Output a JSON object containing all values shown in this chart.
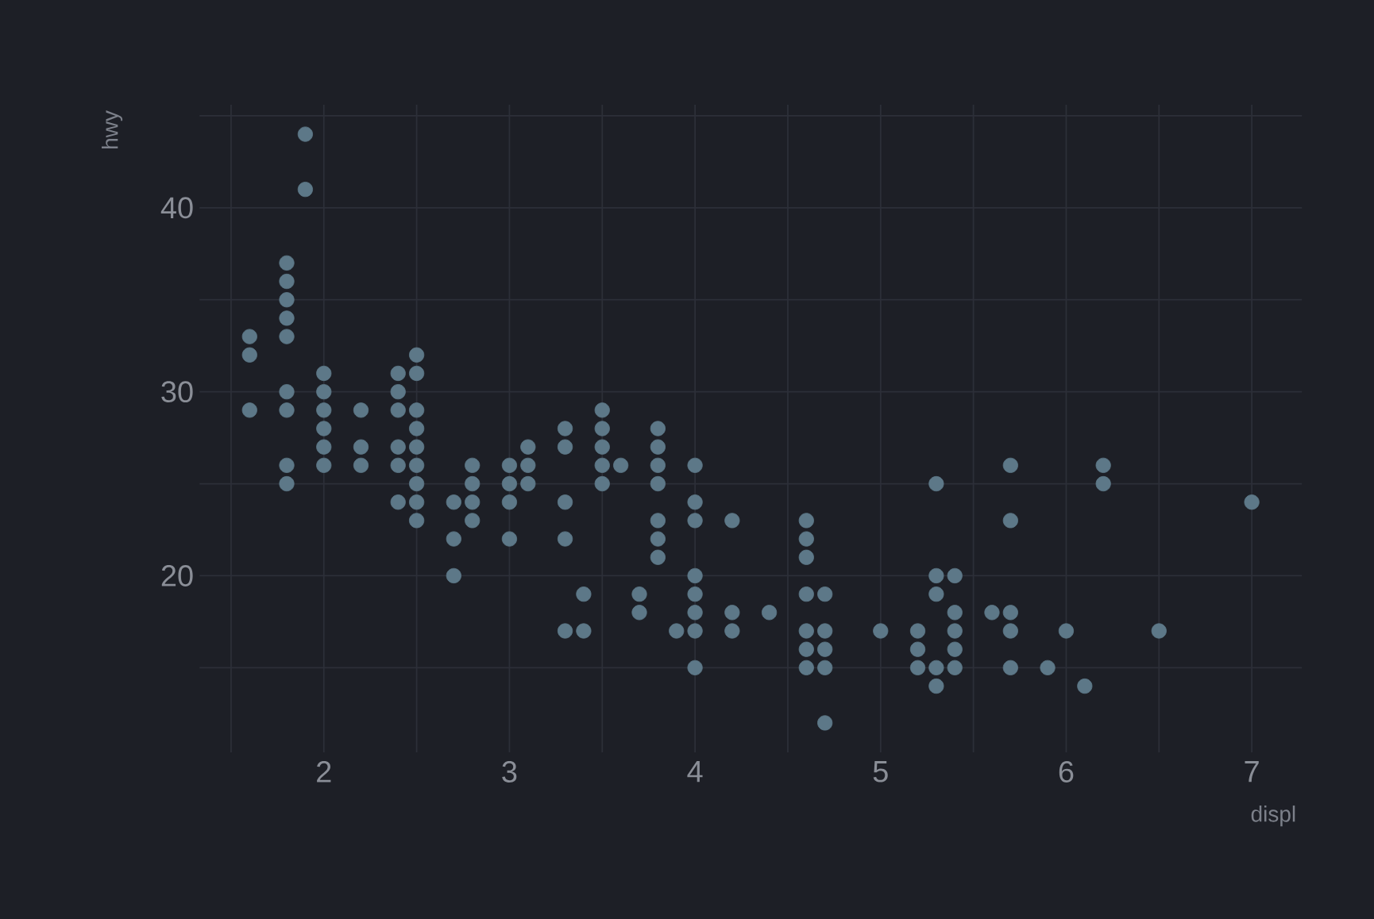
{
  "chart_data": {
    "type": "scatter",
    "xlabel": "displ",
    "ylabel": "hwy",
    "grid": true,
    "xlim": [
      1.33,
      7.27
    ],
    "ylim": [
      10.4,
      45.6
    ],
    "xticks": [
      {
        "value": 1.5,
        "label": null
      },
      2,
      {
        "value": 2.5,
        "label": null
      },
      3,
      {
        "value": 3.5,
        "label": null
      },
      4,
      {
        "value": 4.5,
        "label": null
      },
      5,
      {
        "value": 5.5,
        "label": null
      },
      6,
      {
        "value": 6.5,
        "label": null
      },
      7
    ],
    "yticks": [
      {
        "value": 15,
        "label": null
      },
      20,
      {
        "value": 25,
        "label": null
      },
      30,
      {
        "value": 35,
        "label": null
      },
      40,
      {
        "value": 45,
        "label": null
      }
    ],
    "series": [
      {
        "color": "#5d7888",
        "x": [
          1.6,
          1.6,
          1.6,
          1.8,
          1.8,
          1.8,
          1.8,
          1.8,
          1.8,
          1.8,
          1.8,
          1.8,
          1.9,
          1.9,
          2.0,
          2.0,
          2.0,
          2.0,
          2.0,
          2.0,
          2.2,
          2.2,
          2.2,
          2.4,
          2.4,
          2.4,
          2.4,
          2.4,
          2.4,
          2.5,
          2.5,
          2.5,
          2.5,
          2.5,
          2.5,
          2.5,
          2.5,
          2.5,
          2.7,
          2.7,
          2.7,
          2.8,
          2.8,
          2.8,
          2.8,
          3.0,
          3.0,
          3.0,
          3.0,
          3.1,
          3.1,
          3.1,
          3.3,
          3.3,
          3.3,
          3.3,
          3.3,
          3.4,
          3.4,
          3.5,
          3.5,
          3.5,
          3.5,
          3.5,
          3.6,
          3.7,
          3.7,
          3.8,
          3.8,
          3.8,
          3.8,
          3.8,
          3.8,
          3.8,
          3.9,
          4.0,
          4.0,
          4.0,
          4.0,
          4.0,
          4.0,
          4.0,
          4.0,
          4.2,
          4.2,
          4.2,
          4.4,
          4.6,
          4.6,
          4.6,
          4.6,
          4.6,
          4.6,
          4.6,
          4.7,
          4.7,
          4.7,
          4.7,
          4.7,
          5.0,
          5.2,
          5.2,
          5.2,
          5.3,
          5.3,
          5.3,
          5.3,
          5.3,
          5.4,
          5.4,
          5.4,
          5.4,
          5.4,
          5.6,
          5.7,
          5.7,
          5.7,
          5.7,
          5.7,
          5.9,
          6.0,
          6.1,
          6.2,
          6.2,
          6.5,
          7.0
        ],
        "values": [
          33,
          32,
          29,
          37,
          36,
          35,
          34,
          33,
          30,
          29,
          26,
          25,
          44,
          41,
          31,
          30,
          29,
          28,
          27,
          26,
          29,
          27,
          26,
          31,
          30,
          29,
          27,
          26,
          24,
          32,
          31,
          29,
          28,
          27,
          26,
          25,
          24,
          23,
          24,
          22,
          20,
          26,
          25,
          24,
          23,
          26,
          25,
          24,
          22,
          27,
          26,
          25,
          28,
          27,
          24,
          22,
          17,
          19,
          17,
          29,
          28,
          27,
          26,
          25,
          26,
          19,
          18,
          28,
          27,
          26,
          25,
          23,
          22,
          21,
          17,
          26,
          24,
          23,
          20,
          19,
          18,
          17,
          15,
          23,
          18,
          17,
          18,
          23,
          22,
          21,
          19,
          17,
          16,
          15,
          19,
          17,
          16,
          15,
          12,
          17,
          17,
          16,
          15,
          25,
          20,
          19,
          15,
          14,
          20,
          18,
          17,
          16,
          15,
          18,
          26,
          23,
          18,
          17,
          15,
          15,
          17,
          14,
          26,
          25,
          17,
          24
        ]
      }
    ]
  }
}
